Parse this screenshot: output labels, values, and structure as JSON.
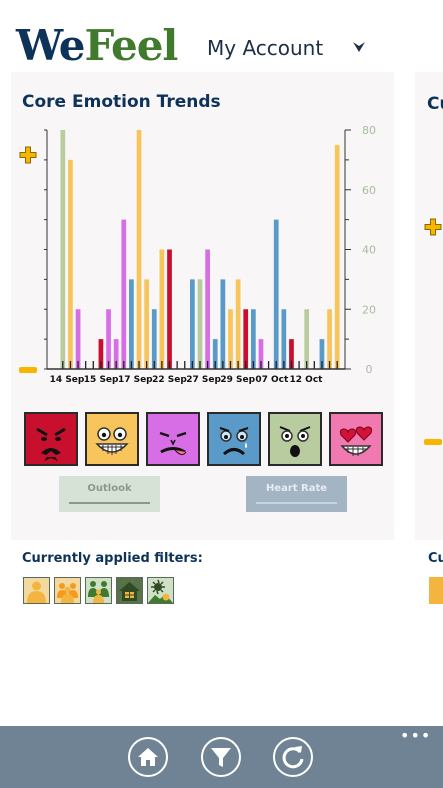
{
  "header": {
    "logo_part1": "We",
    "logo_part2": "Feel",
    "account_label": "My Account",
    "account_chevron_icon": "chevron-down-icon"
  },
  "card": {
    "title": "Core Emotion Trends",
    "peek_title": "Cu",
    "zoom_in_icon": "plus-icon",
    "zoom_out_icon": "minus-icon"
  },
  "colors": {
    "brand_navy": "#0e3358",
    "brand_green": "#3f7a2d",
    "angry_red": "#c8102e",
    "happy_yellow": "#f8c45c",
    "disgust_magenta": "#d86ee6",
    "sad_blue": "#5a9ac8",
    "fear_green": "#b8cca0",
    "love_pink": "#f07ab0",
    "app_bar": "#6f8394"
  },
  "chart_data": {
    "type": "bar",
    "x_tick_labels": [
      "14 Sep",
      "15 Sep",
      "17 Sep",
      "22 Sep",
      "27 Sep",
      "29 Sep",
      "07 Oct",
      "12 Oct"
    ],
    "ylim": [
      0,
      80
    ],
    "y_ticks": [
      "0",
      "20",
      "40",
      "60",
      "80"
    ],
    "axis_side": "right",
    "grid": false,
    "bars": [
      {
        "v": 80,
        "c": "#b8cca0"
      },
      {
        "v": 70,
        "c": "#f8c45c"
      },
      {
        "v": 20,
        "c": "#d86ee6"
      },
      {
        "v": 0,
        "c": "#f8c45c"
      },
      {
        "v": 0,
        "c": "#f8c45c"
      },
      {
        "v": 10,
        "c": "#c8102e"
      },
      {
        "v": 20,
        "c": "#d86ee6"
      },
      {
        "v": 10,
        "c": "#d86ee6"
      },
      {
        "v": 50,
        "c": "#d86ee6"
      },
      {
        "v": 30,
        "c": "#5a9ac8"
      },
      {
        "v": 80,
        "c": "#f8c45c"
      },
      {
        "v": 30,
        "c": "#f8c45c"
      },
      {
        "v": 20,
        "c": "#5a9ac8"
      },
      {
        "v": 40,
        "c": "#f8c45c"
      },
      {
        "v": 40,
        "c": "#c8102e"
      },
      {
        "v": 0,
        "c": "#f8c45c"
      },
      {
        "v": 0,
        "c": "#f8c45c"
      },
      {
        "v": 30,
        "c": "#5a9ac8"
      },
      {
        "v": 30,
        "c": "#b8cca0"
      },
      {
        "v": 40,
        "c": "#d86ee6"
      },
      {
        "v": 10,
        "c": "#5a9ac8"
      },
      {
        "v": 30,
        "c": "#5a9ac8"
      },
      {
        "v": 20,
        "c": "#f8c45c"
      },
      {
        "v": 30,
        "c": "#f8c45c"
      },
      {
        "v": 20,
        "c": "#c8102e"
      },
      {
        "v": 20,
        "c": "#5a9ac8"
      },
      {
        "v": 10,
        "c": "#d86ee6"
      },
      {
        "v": 0,
        "c": "#f8c45c"
      },
      {
        "v": 50,
        "c": "#5a9ac8"
      },
      {
        "v": 20,
        "c": "#5a9ac8"
      },
      {
        "v": 10,
        "c": "#c8102e"
      },
      {
        "v": 0,
        "c": "#f8c45c"
      },
      {
        "v": 20,
        "c": "#b8cca0"
      },
      {
        "v": 0,
        "c": "#f8c45c"
      },
      {
        "v": 10,
        "c": "#5a9ac8"
      },
      {
        "v": 20,
        "c": "#f8c45c"
      },
      {
        "v": 75,
        "c": "#f8c45c"
      }
    ]
  },
  "emotions": [
    {
      "name": "angry",
      "color": "#c8102e",
      "icon": "angry-face-icon"
    },
    {
      "name": "happy",
      "color": "#f8c45c",
      "icon": "grin-face-icon"
    },
    {
      "name": "disgust",
      "color": "#d86ee6",
      "icon": "tongue-face-icon"
    },
    {
      "name": "sad",
      "color": "#5a9ac8",
      "icon": "crying-face-icon"
    },
    {
      "name": "fear",
      "color": "#b8cca0",
      "icon": "shocked-face-icon"
    },
    {
      "name": "love",
      "color": "#f07ab0",
      "icon": "heart-eyes-face-icon"
    }
  ],
  "filter_buttons": {
    "outlook": "Outlook",
    "heart_rate": "Heart Rate"
  },
  "filters": {
    "label": "Currently applied filters:",
    "peek_label": "Cu",
    "icons": [
      "person-icon",
      "group-icon",
      "family-icon",
      "home-icon",
      "outdoors-icon"
    ]
  },
  "app_bar": {
    "home_icon": "home-icon",
    "filter_icon": "filter-icon",
    "refresh_icon": "refresh-icon",
    "more_label": "•••"
  }
}
